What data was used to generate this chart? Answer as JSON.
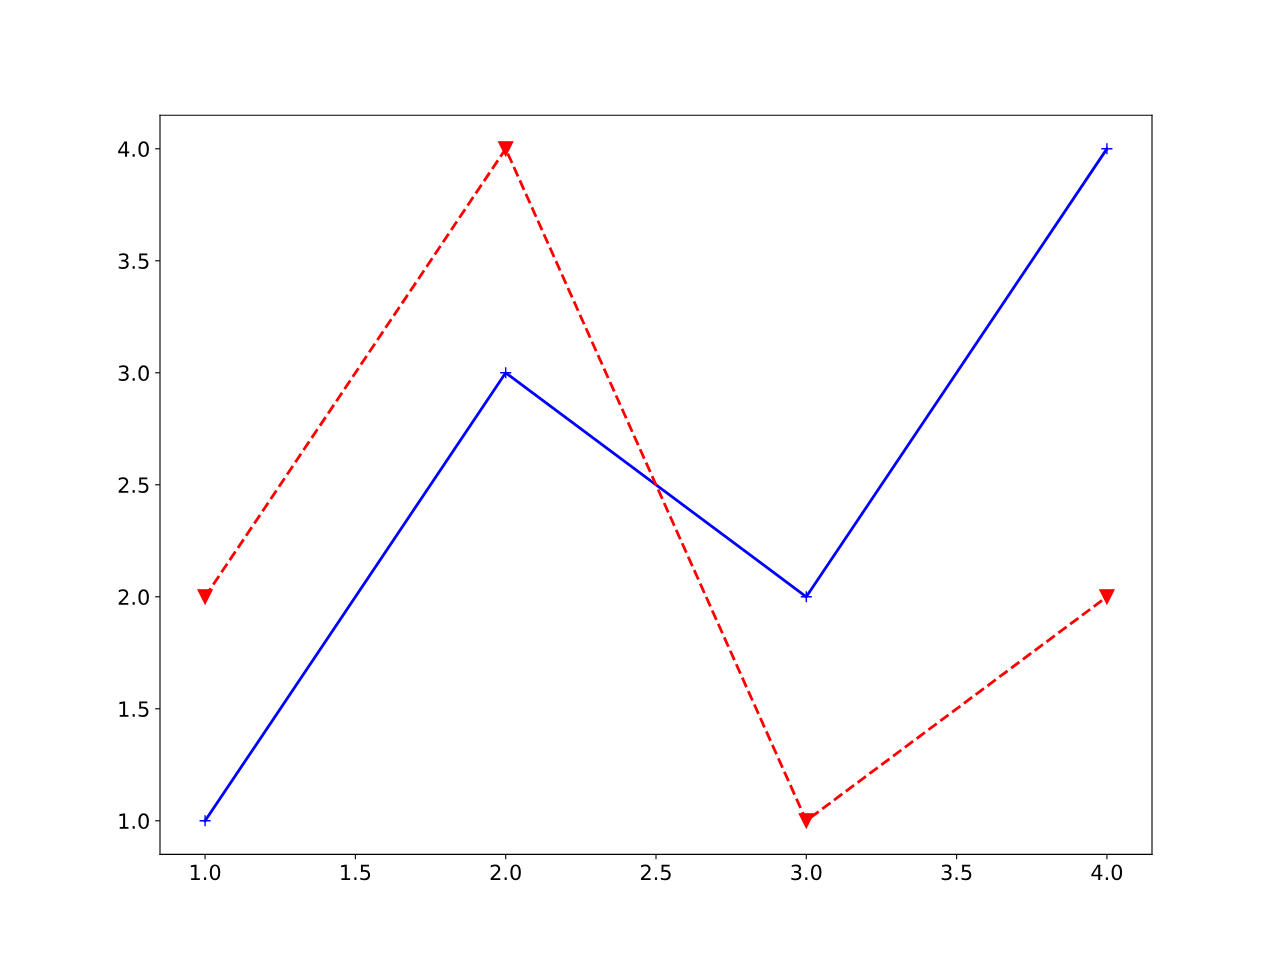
{
  "chart_data": {
    "type": "line",
    "series": [
      {
        "color": "#0000ff",
        "x": [
          1,
          2,
          3,
          4
        ],
        "values": [
          1,
          3,
          2,
          4
        ],
        "marker": "cross",
        "line_style": "solid"
      },
      {
        "color": "#ff0000",
        "x": [
          1,
          2,
          3,
          4
        ],
        "values": [
          2,
          4,
          1,
          2
        ],
        "marker": "triangle",
        "line_style": "dashed"
      }
    ],
    "xlim": [
      0.85,
      4.15
    ],
    "ylim": [
      0.85,
      4.15
    ],
    "xticks": [
      {
        "value": 1,
        "label": "1.0"
      },
      {
        "value": 1.5,
        "label": "1.5"
      },
      {
        "value": 2,
        "label": "2.0"
      },
      {
        "value": 2.5,
        "label": "2.5"
      },
      {
        "value": 3,
        "label": "3.0"
      },
      {
        "value": 3.5,
        "label": "3.5"
      },
      {
        "value": 4,
        "label": "4.0"
      }
    ],
    "yticks": [
      {
        "value": 1,
        "label": "1.0"
      },
      {
        "value": 1.5,
        "label": "1.5"
      },
      {
        "value": 2,
        "label": "2.0"
      },
      {
        "value": 2.5,
        "label": "2.5"
      },
      {
        "value": 3,
        "label": "3.0"
      },
      {
        "value": 3.5,
        "label": "3.5"
      },
      {
        "value": 4,
        "label": "4.0"
      }
    ],
    "grid": false,
    "legend": false
  }
}
